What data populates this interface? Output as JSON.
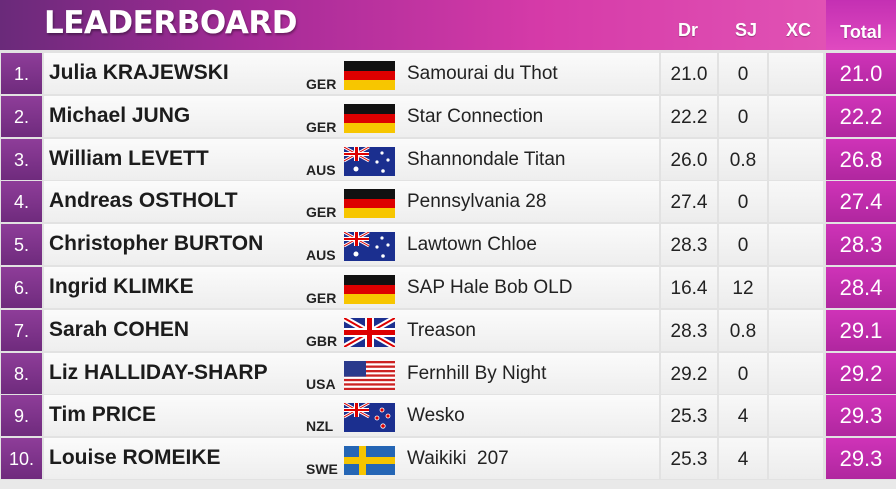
{
  "header": {
    "title": "LEADERBOARD",
    "col_dr": "Dr",
    "col_sj": "SJ",
    "col_xc": "XC",
    "col_total": "Total"
  },
  "colors": {
    "header_gradient_start": "#6a2a7a",
    "header_gradient_end": "#e458b7",
    "rank_bg": "#7d3289",
    "total_bg": "#c42fb1"
  },
  "rows": [
    {
      "rank": "1.",
      "name": "Julia KRAJEWSKI",
      "nat": "GER",
      "flag": "germany-flag",
      "horse": "Samourai du Thot",
      "dr": "21.0",
      "sj": "0",
      "xc": "",
      "total": "21.0"
    },
    {
      "rank": "2.",
      "name": "Michael JUNG",
      "nat": "GER",
      "flag": "germany-flag",
      "horse": "Star Connection",
      "dr": "22.2",
      "sj": "0",
      "xc": "",
      "total": "22.2"
    },
    {
      "rank": "3.",
      "name": "William LEVETT",
      "nat": "AUS",
      "flag": "australia-flag",
      "horse": "Shannondale Titan",
      "dr": "26.0",
      "sj": "0.8",
      "xc": "",
      "total": "26.8"
    },
    {
      "rank": "4.",
      "name": "Andreas OSTHOLT",
      "nat": "GER",
      "flag": "germany-flag",
      "horse": "Pennsylvania 28",
      "dr": "27.4",
      "sj": "0",
      "xc": "",
      "total": "27.4"
    },
    {
      "rank": "5.",
      "name": "Christopher BURTON",
      "nat": "AUS",
      "flag": "australia-flag",
      "horse": "Lawtown Chloe",
      "dr": "28.3",
      "sj": "0",
      "xc": "",
      "total": "28.3"
    },
    {
      "rank": "6.",
      "name": "Ingrid KLIMKE",
      "nat": "GER",
      "flag": "germany-flag",
      "horse": "SAP Hale Bob OLD",
      "dr": "16.4",
      "sj": "12",
      "xc": "",
      "total": "28.4"
    },
    {
      "rank": "7.",
      "name": "Sarah COHEN",
      "nat": "GBR",
      "flag": "uk-flag",
      "horse": "Treason",
      "dr": "28.3",
      "sj": "0.8",
      "xc": "",
      "total": "29.1"
    },
    {
      "rank": "8.",
      "name": "Liz HALLIDAY-SHARP",
      "nat": "USA",
      "flag": "usa-flag",
      "horse": "Fernhill By Night",
      "dr": "29.2",
      "sj": "0",
      "xc": "",
      "total": "29.2"
    },
    {
      "rank": "9.",
      "name": "Tim PRICE",
      "nat": "NZL",
      "flag": "new-zealand-flag",
      "horse": "Wesko",
      "dr": "25.3",
      "sj": "4",
      "xc": "",
      "total": "29.3"
    },
    {
      "rank": "10.",
      "name": "Louise ROMEIKE",
      "nat": "SWE",
      "flag": "sweden-flag",
      "horse": "Waikiki  207",
      "dr": "25.3",
      "sj": "4",
      "xc": "",
      "total": "29.3"
    }
  ]
}
